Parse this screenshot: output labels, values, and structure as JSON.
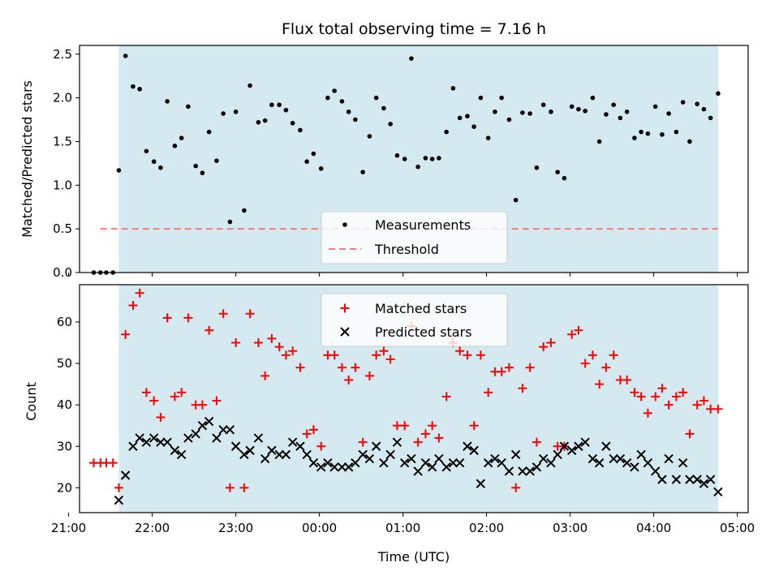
{
  "chart_data": [
    {
      "type": "scatter",
      "title": "Flux total observing time = 7.16 h",
      "xlabel": "",
      "ylabel": "Matched/Predicted stars",
      "xlim": [
        21.13,
        29.13
      ],
      "ylim": [
        0,
        2.6
      ],
      "yticks": [
        0.0,
        0.5,
        1.0,
        1.5,
        2.0,
        2.5
      ],
      "ytick_labels": [
        "0.0",
        "0.5",
        "1.0",
        "1.5",
        "2.0",
        "2.5"
      ],
      "grid": false,
      "legend_position": "lower-center",
      "shaded_interval": {
        "start": 21.6,
        "end": 28.77,
        "color": "#d4eaf0"
      },
      "threshold": {
        "name": "Threshold",
        "y": 0.5,
        "x_start": 21.38,
        "x_end": 28.77,
        "color": "#f08080"
      },
      "series": [
        {
          "name": "Measurements",
          "color": "#000000",
          "x": [
            21.3,
            21.38,
            21.45,
            21.53,
            21.6,
            21.68,
            21.77,
            21.85,
            21.93,
            22.02,
            22.1,
            22.18,
            22.27,
            22.35,
            22.43,
            22.52,
            22.6,
            22.68,
            22.77,
            22.85,
            22.93,
            23.0,
            23.1,
            23.17,
            23.27,
            23.35,
            23.43,
            23.52,
            23.6,
            23.68,
            23.77,
            23.85,
            23.93,
            24.02,
            24.1,
            24.18,
            24.27,
            24.35,
            24.43,
            24.52,
            24.6,
            24.68,
            24.77,
            24.85,
            24.93,
            25.02,
            25.1,
            25.18,
            25.27,
            25.35,
            25.43,
            25.52,
            25.6,
            25.68,
            25.77,
            25.85,
            25.93,
            26.02,
            26.1,
            26.18,
            26.27,
            26.35,
            26.43,
            26.52,
            26.6,
            26.68,
            26.77,
            26.85,
            26.93,
            27.02,
            27.1,
            27.18,
            27.27,
            27.35,
            27.43,
            27.52,
            27.6,
            27.68,
            27.77,
            27.85,
            27.93,
            28.02,
            28.1,
            28.18,
            28.27,
            28.35,
            28.43,
            28.52,
            28.6,
            28.68,
            28.77
          ],
          "y": [
            0,
            0,
            0,
            0,
            1.17,
            2.48,
            2.13,
            2.1,
            1.39,
            1.27,
            1.2,
            1.96,
            1.45,
            1.54,
            1.9,
            1.22,
            1.14,
            1.61,
            1.28,
            1.82,
            0.58,
            1.84,
            0.71,
            2.14,
            1.72,
            1.74,
            1.92,
            1.92,
            1.86,
            1.71,
            1.63,
            1.27,
            1.36,
            1.19,
            2.0,
            2.08,
            1.96,
            1.84,
            1.75,
            1.15,
            1.56,
            2.0,
            1.88,
            1.7,
            1.34,
            1.3,
            2.45,
            1.21,
            1.31,
            1.3,
            1.31,
            1.61,
            2.11,
            1.77,
            1.79,
            1.67,
            2.0,
            1.54,
            1.84,
            2.0,
            1.75,
            0.83,
            1.83,
            1.82,
            1.2,
            1.92,
            1.84,
            1.15,
            1.08,
            1.9,
            1.87,
            1.85,
            2.0,
            1.5,
            1.81,
            1.92,
            1.77,
            1.84,
            1.54,
            1.61,
            1.59,
            1.9,
            1.58,
            1.82,
            1.61,
            1.95,
            1.5,
            1.93,
            1.87,
            1.77,
            2.05
          ]
        }
      ]
    },
    {
      "type": "scatter",
      "title": "",
      "xlabel": "Time (UTC)",
      "ylabel": "Count",
      "xlim": [
        21.13,
        29.13
      ],
      "ylim": [
        14,
        69
      ],
      "yticks": [
        20,
        30,
        40,
        50,
        60
      ],
      "ytick_labels": [
        "20",
        "30",
        "40",
        "50",
        "60"
      ],
      "xticks": [
        21,
        22,
        23,
        24,
        25,
        26,
        27,
        28,
        29
      ],
      "xtick_labels": [
        "21:00",
        "22:00",
        "23:00",
        "00:00",
        "01:00",
        "02:00",
        "03:00",
        "04:00",
        "05:00"
      ],
      "grid": false,
      "legend_position": "top-center",
      "shaded_interval": {
        "start": 21.6,
        "end": 28.77,
        "color": "#d4eaf0"
      },
      "series": [
        {
          "name": "Matched stars",
          "marker": "plus",
          "color": "#ff0000",
          "x": [
            21.3,
            21.38,
            21.45,
            21.53,
            21.6,
            21.68,
            21.77,
            21.85,
            21.93,
            22.02,
            22.1,
            22.18,
            22.27,
            22.35,
            22.43,
            22.52,
            22.6,
            22.68,
            22.77,
            22.85,
            22.93,
            23.0,
            23.1,
            23.17,
            23.27,
            23.35,
            23.43,
            23.52,
            23.6,
            23.68,
            23.77,
            23.85,
            23.93,
            24.02,
            24.1,
            24.18,
            24.27,
            24.35,
            24.43,
            24.52,
            24.6,
            24.68,
            24.77,
            24.85,
            24.93,
            25.02,
            25.1,
            25.18,
            25.27,
            25.35,
            25.43,
            25.52,
            25.6,
            25.68,
            25.77,
            25.85,
            25.93,
            26.02,
            26.1,
            26.18,
            26.27,
            26.35,
            26.43,
            26.52,
            26.6,
            26.68,
            26.77,
            26.85,
            26.93,
            27.02,
            27.1,
            27.18,
            27.27,
            27.35,
            27.43,
            27.52,
            27.6,
            27.68,
            27.77,
            27.85,
            27.93,
            28.02,
            28.1,
            28.18,
            28.27,
            28.35,
            28.43,
            28.52,
            28.6,
            28.68,
            28.77
          ],
          "y": [
            26,
            26,
            26,
            26,
            20,
            57,
            64,
            67,
            43,
            41,
            37,
            61,
            42,
            43,
            61,
            40,
            40,
            58,
            41,
            62,
            20,
            55,
            20,
            62,
            55,
            47,
            56,
            54,
            52,
            53,
            49,
            33,
            34,
            30,
            52,
            52,
            49,
            46,
            49,
            31,
            47,
            52,
            53,
            51,
            35,
            35,
            59,
            31,
            33,
            35,
            32,
            42,
            55,
            53,
            52,
            35,
            52,
            43,
            48,
            48,
            49,
            20,
            44,
            49,
            31,
            54,
            55,
            30,
            30,
            57,
            58,
            50,
            52,
            45,
            49,
            52,
            46,
            46,
            43,
            42,
            38,
            42,
            44,
            40,
            42,
            43,
            33,
            40,
            41,
            39,
            39
          ]
        },
        {
          "name": "Predicted stars",
          "marker": "x",
          "color": "#000000",
          "x": [
            21.6,
            21.68,
            21.77,
            21.85,
            21.93,
            22.02,
            22.1,
            22.18,
            22.27,
            22.35,
            22.43,
            22.52,
            22.6,
            22.68,
            22.77,
            22.85,
            22.93,
            23.0,
            23.1,
            23.17,
            23.27,
            23.35,
            23.43,
            23.52,
            23.6,
            23.68,
            23.77,
            23.85,
            23.93,
            24.02,
            24.1,
            24.18,
            24.27,
            24.35,
            24.43,
            24.52,
            24.6,
            24.68,
            24.77,
            24.85,
            24.93,
            25.02,
            25.1,
            25.18,
            25.27,
            25.35,
            25.43,
            25.52,
            25.6,
            25.68,
            25.77,
            25.85,
            25.93,
            26.02,
            26.1,
            26.18,
            26.27,
            26.35,
            26.43,
            26.52,
            26.6,
            26.68,
            26.77,
            26.85,
            26.93,
            27.02,
            27.1,
            27.18,
            27.27,
            27.35,
            27.43,
            27.52,
            27.6,
            27.68,
            27.77,
            27.85,
            27.93,
            28.02,
            28.1,
            28.18,
            28.27,
            28.35,
            28.43,
            28.52,
            28.6,
            28.68,
            28.77
          ],
          "y": [
            17,
            23,
            30,
            32,
            31,
            32,
            31,
            31,
            29,
            28,
            32,
            33,
            35,
            36,
            32,
            34,
            34,
            30,
            28,
            29,
            32,
            27,
            29,
            28,
            28,
            31,
            30,
            28,
            26,
            25,
            26,
            25,
            25,
            25,
            26,
            28,
            27,
            30,
            26,
            28,
            31,
            26,
            27,
            24,
            26,
            25,
            27,
            25,
            26,
            26,
            30,
            29,
            21,
            26,
            27,
            26,
            24,
            28,
            24,
            24,
            25,
            27,
            26,
            28,
            30,
            29,
            30,
            31,
            27,
            26,
            30,
            27,
            27,
            26,
            25,
            28,
            26,
            24,
            22,
            27,
            22,
            26,
            22,
            22,
            21,
            22,
            19
          ]
        }
      ]
    }
  ]
}
